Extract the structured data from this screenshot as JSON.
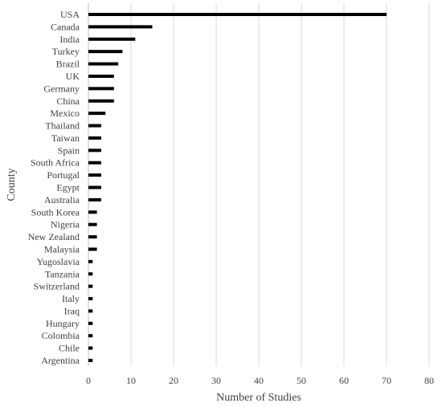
{
  "chart_data": {
    "type": "bar",
    "orientation": "horizontal",
    "title": "",
    "xlabel": "Number of Studies",
    "ylabel": "County",
    "xlim": [
      0,
      80
    ],
    "xticks": [
      0,
      10,
      20,
      30,
      40,
      50,
      60,
      70,
      80
    ],
    "grid": "vertical major gridlines",
    "legend": "none",
    "bar_color": "#000000",
    "categories": [
      "USA",
      "Canada",
      "India",
      "Turkey",
      "Brazil",
      "UK",
      "Germany",
      "China",
      "Mexico",
      "Thailand",
      "Taiwan",
      "Spain",
      "South Africa",
      "Portugal",
      "Egypt",
      "Australia",
      "South Korea",
      "Nigeria",
      "New Zealand",
      "Malaysia",
      "Yugoslavia",
      "Tanzania",
      "Switzerland",
      "Italy",
      "Iraq",
      "Hungary",
      "Colombia",
      "Chile",
      "Argentina"
    ],
    "values": [
      70,
      15,
      11,
      8,
      7,
      6,
      6,
      6,
      4,
      3,
      3,
      3,
      3,
      3,
      3,
      3,
      2,
      2,
      2,
      2,
      1,
      1,
      1,
      1,
      1,
      1,
      1,
      1,
      1
    ]
  }
}
